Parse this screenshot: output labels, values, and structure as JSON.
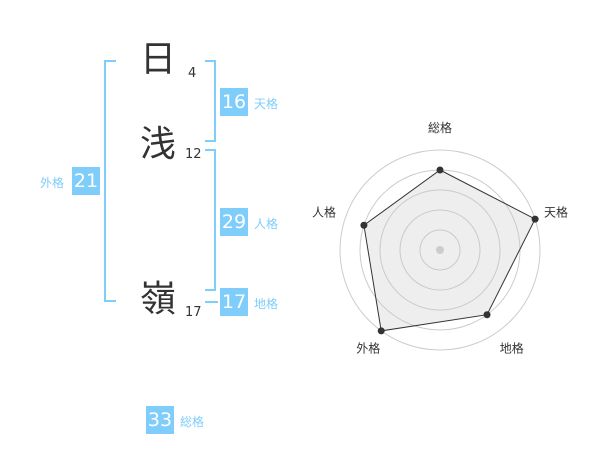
{
  "name": [
    {
      "char": "日",
      "strokes": "4"
    },
    {
      "char": "浅",
      "strokes": "12"
    },
    {
      "char": "嶺",
      "strokes": "17"
    }
  ],
  "fortunes": {
    "tenkaku": {
      "label": "天格",
      "value": "16"
    },
    "jinkaku": {
      "label": "人格",
      "value": "29"
    },
    "chikaku": {
      "label": "地格",
      "value": "17"
    },
    "gaikaku": {
      "label": "外格",
      "value": "21"
    },
    "soukaku": {
      "label": "総格",
      "value": "33"
    }
  },
  "accent_color": "#7fcdfb",
  "chart_data": {
    "type": "radar",
    "axes": [
      "総格",
      "天格",
      "地格",
      "外格",
      "人格"
    ],
    "values": [
      4,
      5,
      4,
      5,
      4
    ],
    "range": [
      0,
      5
    ],
    "rings": 5
  }
}
